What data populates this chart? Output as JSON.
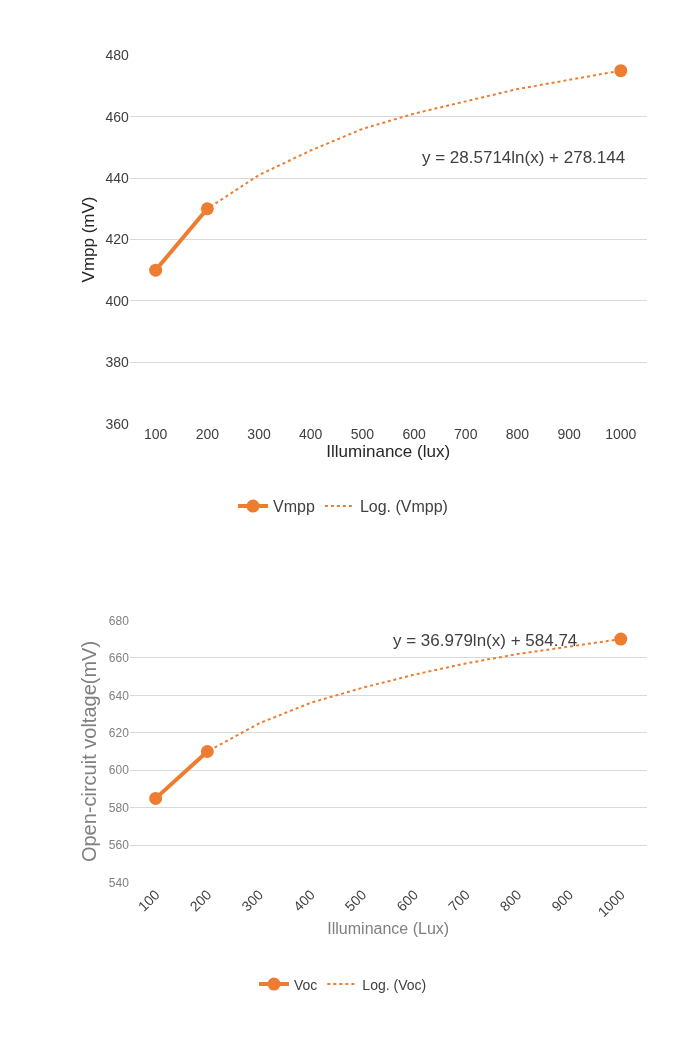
{
  "chart_data": [
    {
      "type": "line",
      "xlabel": "Illuminance (lux)",
      "ylabel": "Vmpp (mV)",
      "categories": [
        "100",
        "200",
        "300",
        "400",
        "500",
        "600",
        "700",
        "800",
        "900",
        "1000"
      ],
      "ylim": [
        360,
        480
      ],
      "yticks": [
        360,
        380,
        400,
        420,
        440,
        460,
        480
      ],
      "grid": "y",
      "legend": "bottom",
      "annotations": [
        "y = 28.5714ln(x) + 278.144"
      ],
      "series": [
        {
          "name": "Vmpp",
          "color": "#ed7d31",
          "marker": "circle",
          "line_style": "solid",
          "values": [
            410,
            430,
            null,
            null,
            null,
            null,
            null,
            null,
            null,
            475
          ]
        },
        {
          "name": "Log. (Vmpp)",
          "color": "#ed7d31",
          "marker": "none",
          "line_style": "dotted",
          "values": [
            410,
            430,
            441,
            449,
            456,
            461,
            465,
            469,
            472,
            475
          ]
        }
      ]
    },
    {
      "type": "line",
      "xlabel": "Illuminance (Lux)",
      "ylabel": "Open-circuit voltage(mV)",
      "categories": [
        "100",
        "200",
        "300",
        "400",
        "500",
        "600",
        "700",
        "800",
        "900",
        "1000"
      ],
      "ylim": [
        540,
        680
      ],
      "yticks": [
        540,
        560,
        580,
        600,
        620,
        640,
        660,
        680
      ],
      "grid": "y",
      "legend": "bottom",
      "annotations": [
        "y = 36.979ln(x) + 584.74"
      ],
      "series": [
        {
          "name": "Voc",
          "color": "#ed7d31",
          "marker": "circle",
          "line_style": "solid",
          "values": [
            585,
            610,
            null,
            null,
            null,
            null,
            null,
            null,
            null,
            670
          ]
        },
        {
          "name": "Log. (Voc)",
          "color": "#ed7d31",
          "marker": "none",
          "line_style": "dotted",
          "values": [
            585,
            610,
            625,
            636,
            644,
            651,
            657,
            662,
            666,
            670
          ]
        }
      ]
    }
  ]
}
